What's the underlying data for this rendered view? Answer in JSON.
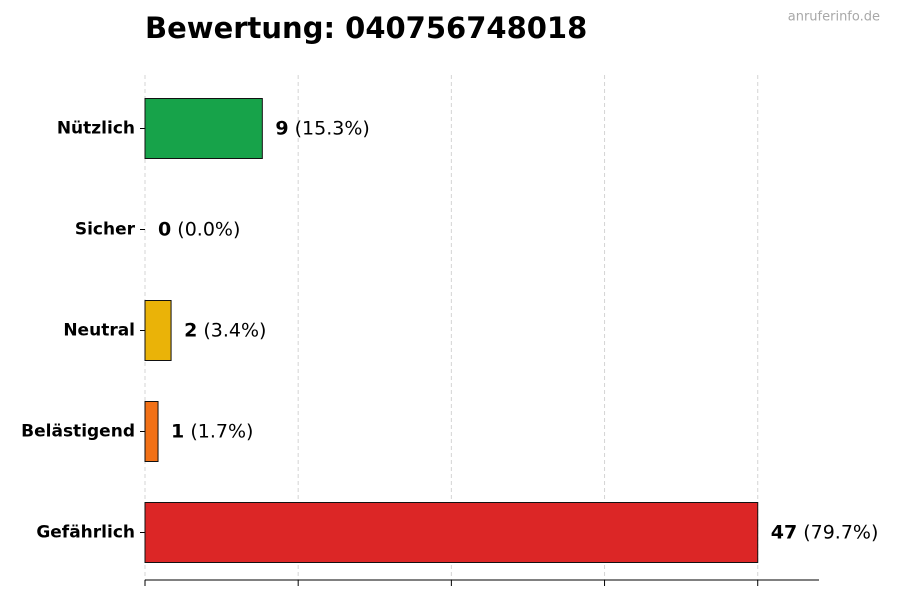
{
  "chart_data": {
    "type": "bar",
    "orientation": "horizontal",
    "title": "Bewertung: 040756748018",
    "watermark": "anruferinfo.de",
    "categories": [
      "Nützlich",
      "Sicher",
      "Neutral",
      "Belästigend",
      "Gefährlich"
    ],
    "values": [
      9,
      0,
      2,
      1,
      47
    ],
    "percent_labels": [
      "(15.3%)",
      "(0.0%)",
      "(3.4%)",
      "(1.7%)",
      "(79.7%)"
    ],
    "colors": [
      "#17a34a",
      "#6b7280",
      "#eab308",
      "#f27117",
      "#dc2626"
    ],
    "xlim": [
      0,
      51.7
    ],
    "xticks": [
      0,
      11.75,
      23.5,
      35.25,
      47
    ],
    "grid": true
  }
}
